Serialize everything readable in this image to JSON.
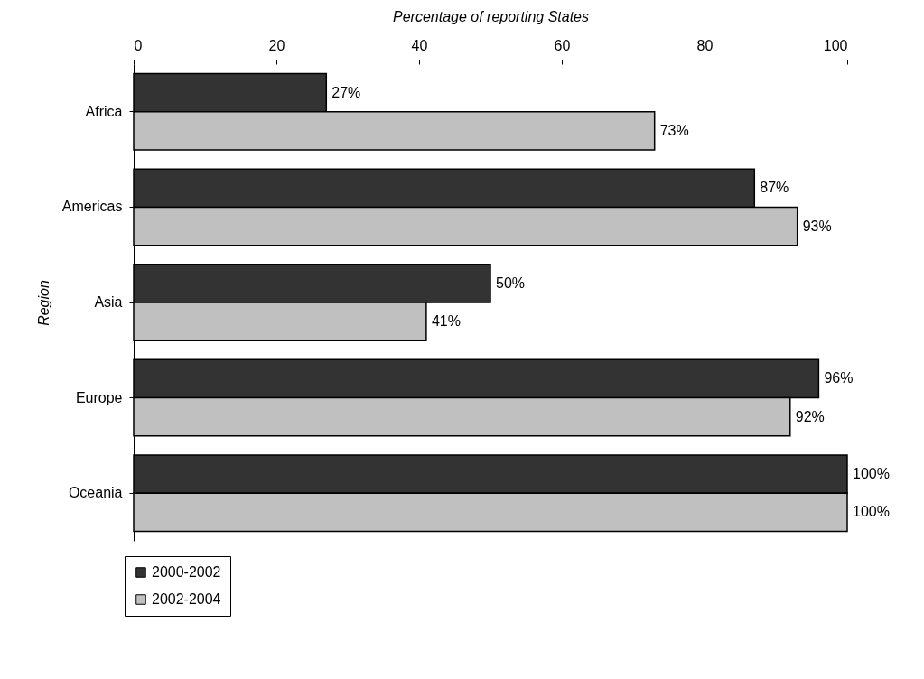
{
  "chart_data": {
    "type": "bar",
    "orientation": "horizontal",
    "xlabel": "Percentage of reporting States",
    "ylabel": "Region",
    "categories": [
      "Africa",
      "Americas",
      "Asia",
      "Europe",
      "Oceania"
    ],
    "series": [
      {
        "name": "2000-2002",
        "color": "#333333",
        "values": [
          27,
          87,
          50,
          96,
          100
        ],
        "value_labels": [
          "27%",
          "87%",
          "50%",
          "96%",
          "100%"
        ]
      },
      {
        "name": "2002-2004",
        "color": "#c0c0c0",
        "values": [
          73,
          93,
          41,
          92,
          100
        ],
        "value_labels": [
          "73%",
          "93%",
          "41%",
          "92%",
          "100%"
        ]
      }
    ],
    "xlim": [
      0,
      100
    ],
    "xticks": [
      0,
      20,
      40,
      60,
      80,
      100
    ],
    "grid": false,
    "legend": "bottom left"
  }
}
